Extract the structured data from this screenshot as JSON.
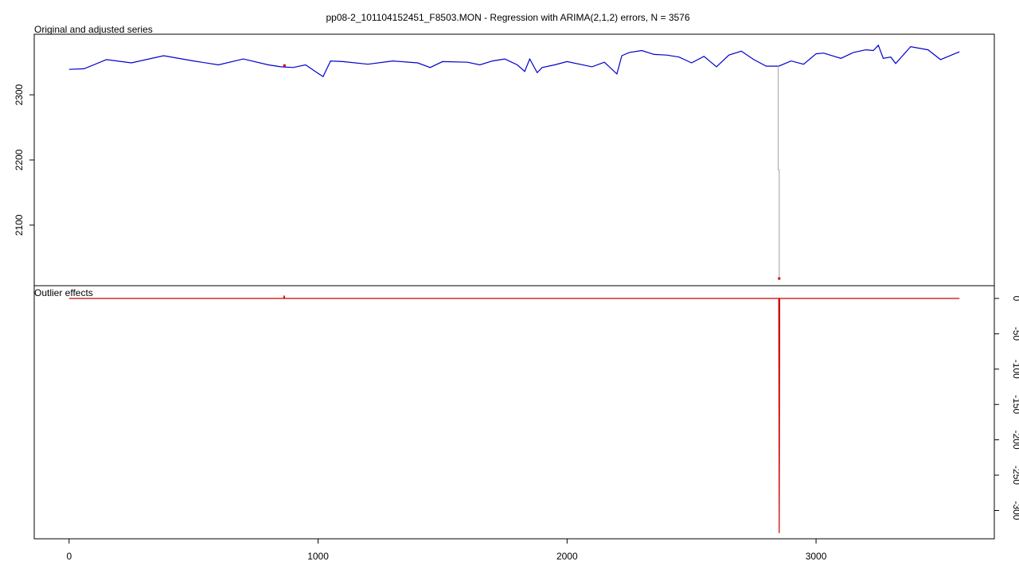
{
  "chart_data": [
    {
      "panel": "top",
      "type": "line",
      "title": "pp08-2_101104152451_F8503.MON - Regression with ARIMA(2,1,2) errors, N = 3576",
      "subtitle": "Original and adjusted series",
      "x_range": [
        0,
        3576
      ],
      "xlim": [
        -140,
        3716
      ],
      "ylim": [
        2007,
        2393
      ],
      "y_ticks": [
        2100,
        2200,
        2300
      ],
      "y_tick_labels": [
        "2100",
        "2200",
        "2300"
      ],
      "grid": false,
      "series": [
        {
          "role": "adjusted",
          "color": "#0000cc",
          "x": [
            0,
            60,
            150,
            250,
            380,
            500,
            600,
            700,
            800,
            850,
            900,
            950,
            1000,
            1020,
            1050,
            1100,
            1200,
            1300,
            1400,
            1450,
            1500,
            1600,
            1650,
            1700,
            1750,
            1800,
            1830,
            1850,
            1880,
            1900,
            1950,
            2000,
            2100,
            2150,
            2200,
            2220,
            2250,
            2300,
            2350,
            2400,
            2450,
            2500,
            2550,
            2600,
            2650,
            2700,
            2750,
            2800,
            2850,
            2900,
            2950,
            3000,
            3030,
            3100,
            3150,
            3200,
            3230,
            3250,
            3270,
            3300,
            3320,
            3380,
            3450,
            3500,
            3576
          ],
          "y": [
            2339,
            2340,
            2354,
            2349,
            2360,
            2352,
            2346,
            2355,
            2346,
            2343,
            2342,
            2346,
            2333,
            2328,
            2352,
            2351,
            2347,
            2352,
            2349,
            2342,
            2351,
            2350,
            2346,
            2352,
            2355,
            2346,
            2336,
            2355,
            2334,
            2342,
            2346,
            2351,
            2343,
            2350,
            2332,
            2360,
            2365,
            2368,
            2362,
            2361,
            2358,
            2349,
            2359,
            2343,
            2361,
            2367,
            2354,
            2344,
            2344,
            2352,
            2347,
            2363,
            2364,
            2356,
            2365,
            2369,
            2368,
            2376,
            2356,
            2358,
            2348,
            2374,
            2369,
            2354,
            2366
          ]
        },
        {
          "role": "original",
          "color": "#b0b0b0",
          "x": [
            2848,
            2848,
            2852,
            2852
          ],
          "y": [
            2344,
            2185,
            2185,
            2018
          ]
        }
      ],
      "markers": [
        {
          "x": 2852,
          "y": 2018,
          "color": "#dd0000"
        },
        {
          "x": 865,
          "y": 2345,
          "color": "#dd0000"
        }
      ]
    },
    {
      "panel": "bottom",
      "type": "line",
      "title": "Outlier effects",
      "x_range": [
        0,
        3576
      ],
      "xlim": [
        -140,
        3716
      ],
      "ylim": [
        -340,
        18
      ],
      "y_ticks": [
        0,
        -50,
        -100,
        -150,
        -200,
        -250,
        -300
      ],
      "y_tick_labels": [
        "0",
        "-50",
        "-100",
        "-150",
        "-200",
        "-250",
        "-300"
      ],
      "x_ticks": [
        0,
        1000,
        2000,
        3000
      ],
      "x_tick_labels": [
        "0",
        "1000",
        "2000",
        "3000"
      ],
      "grid": false,
      "series": [
        {
          "role": "effects",
          "color": "#cc0000",
          "x": [
            0,
            862,
            864,
            866,
            868,
            2850,
            2852,
            2854,
            3576
          ],
          "y": [
            0,
            0,
            4,
            0,
            0,
            0,
            -332,
            0,
            0
          ]
        }
      ]
    }
  ]
}
